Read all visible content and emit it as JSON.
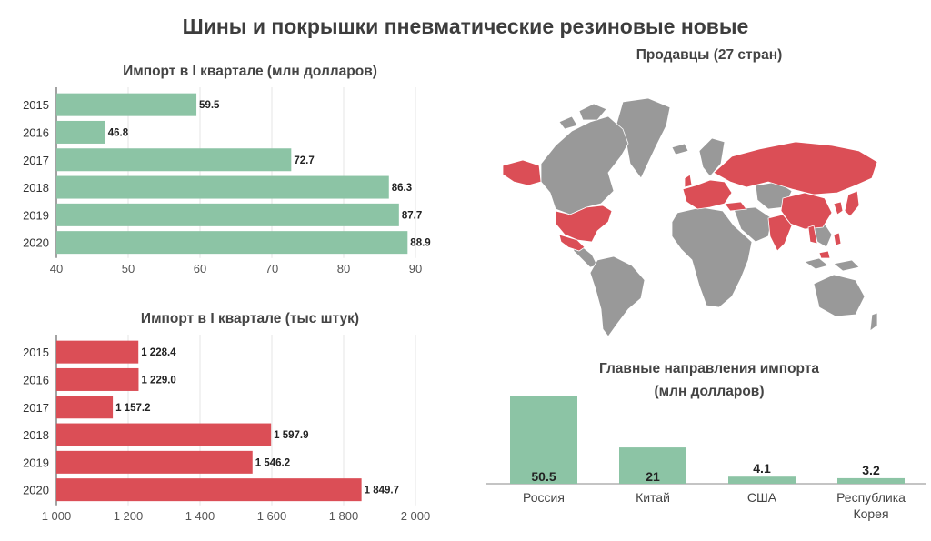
{
  "title": "Шины и покрышки пневматические резиновые новые",
  "colors": {
    "green": "#8cc4a5",
    "red": "#db4e56",
    "gray": "#999999",
    "axis": "#555555"
  },
  "chart_data": [
    {
      "type": "bar",
      "orientation": "horizontal",
      "title": "Импорт в I квартале (млн долларов)",
      "categories": [
        "2015",
        "2016",
        "2017",
        "2018",
        "2019",
        "2020"
      ],
      "values": [
        59.5,
        46.8,
        72.7,
        86.3,
        87.7,
        88.9
      ],
      "value_labels": [
        "59.5",
        "46.8",
        "72.7",
        "86.3",
        "87.7",
        "88.9"
      ],
      "xlim": [
        40,
        90
      ],
      "ticks": [
        40,
        50,
        60,
        70,
        80,
        90
      ],
      "tick_labels": [
        "40",
        "50",
        "60",
        "70",
        "80",
        "90"
      ],
      "grid": true
    },
    {
      "type": "bar",
      "orientation": "horizontal",
      "title": "Импорт в I квартале (тыс штук)",
      "categories": [
        "2015",
        "2016",
        "2017",
        "2018",
        "2019",
        "2020"
      ],
      "values": [
        1228.4,
        1229.0,
        1157.2,
        1597.9,
        1546.2,
        1849.7
      ],
      "value_labels": [
        "1 228.4",
        "1 229.0",
        "1 157.2",
        "1 597.9",
        "1 546.2",
        "1 849.7"
      ],
      "xlim": [
        1000,
        2000
      ],
      "ticks": [
        1000,
        1200,
        1400,
        1600,
        1800,
        2000
      ],
      "tick_labels": [
        "1 000",
        "1 200",
        "1 400",
        "1 600",
        "1 800",
        "2 000"
      ],
      "grid": true
    },
    {
      "type": "bar",
      "orientation": "vertical",
      "title": "Главные направления импорта (млн долларов)",
      "title_lines": [
        "Главные направления импорта",
        "(млн долларов)"
      ],
      "categories": [
        "Россия",
        "Китай",
        "США",
        "Республика Корея"
      ],
      "category_lines": [
        [
          "Россия"
        ],
        [
          "Китай"
        ],
        [
          "США"
        ],
        [
          "Республика",
          "Корея"
        ]
      ],
      "values": [
        50.5,
        21,
        4.1,
        3.2
      ],
      "value_labels": [
        "50.5",
        "21",
        "4.1",
        "3.2"
      ]
    }
  ],
  "map": {
    "title": "Продавцы (27 стран)",
    "highlighted_color": "#db4e56",
    "other_color": "#999999"
  }
}
